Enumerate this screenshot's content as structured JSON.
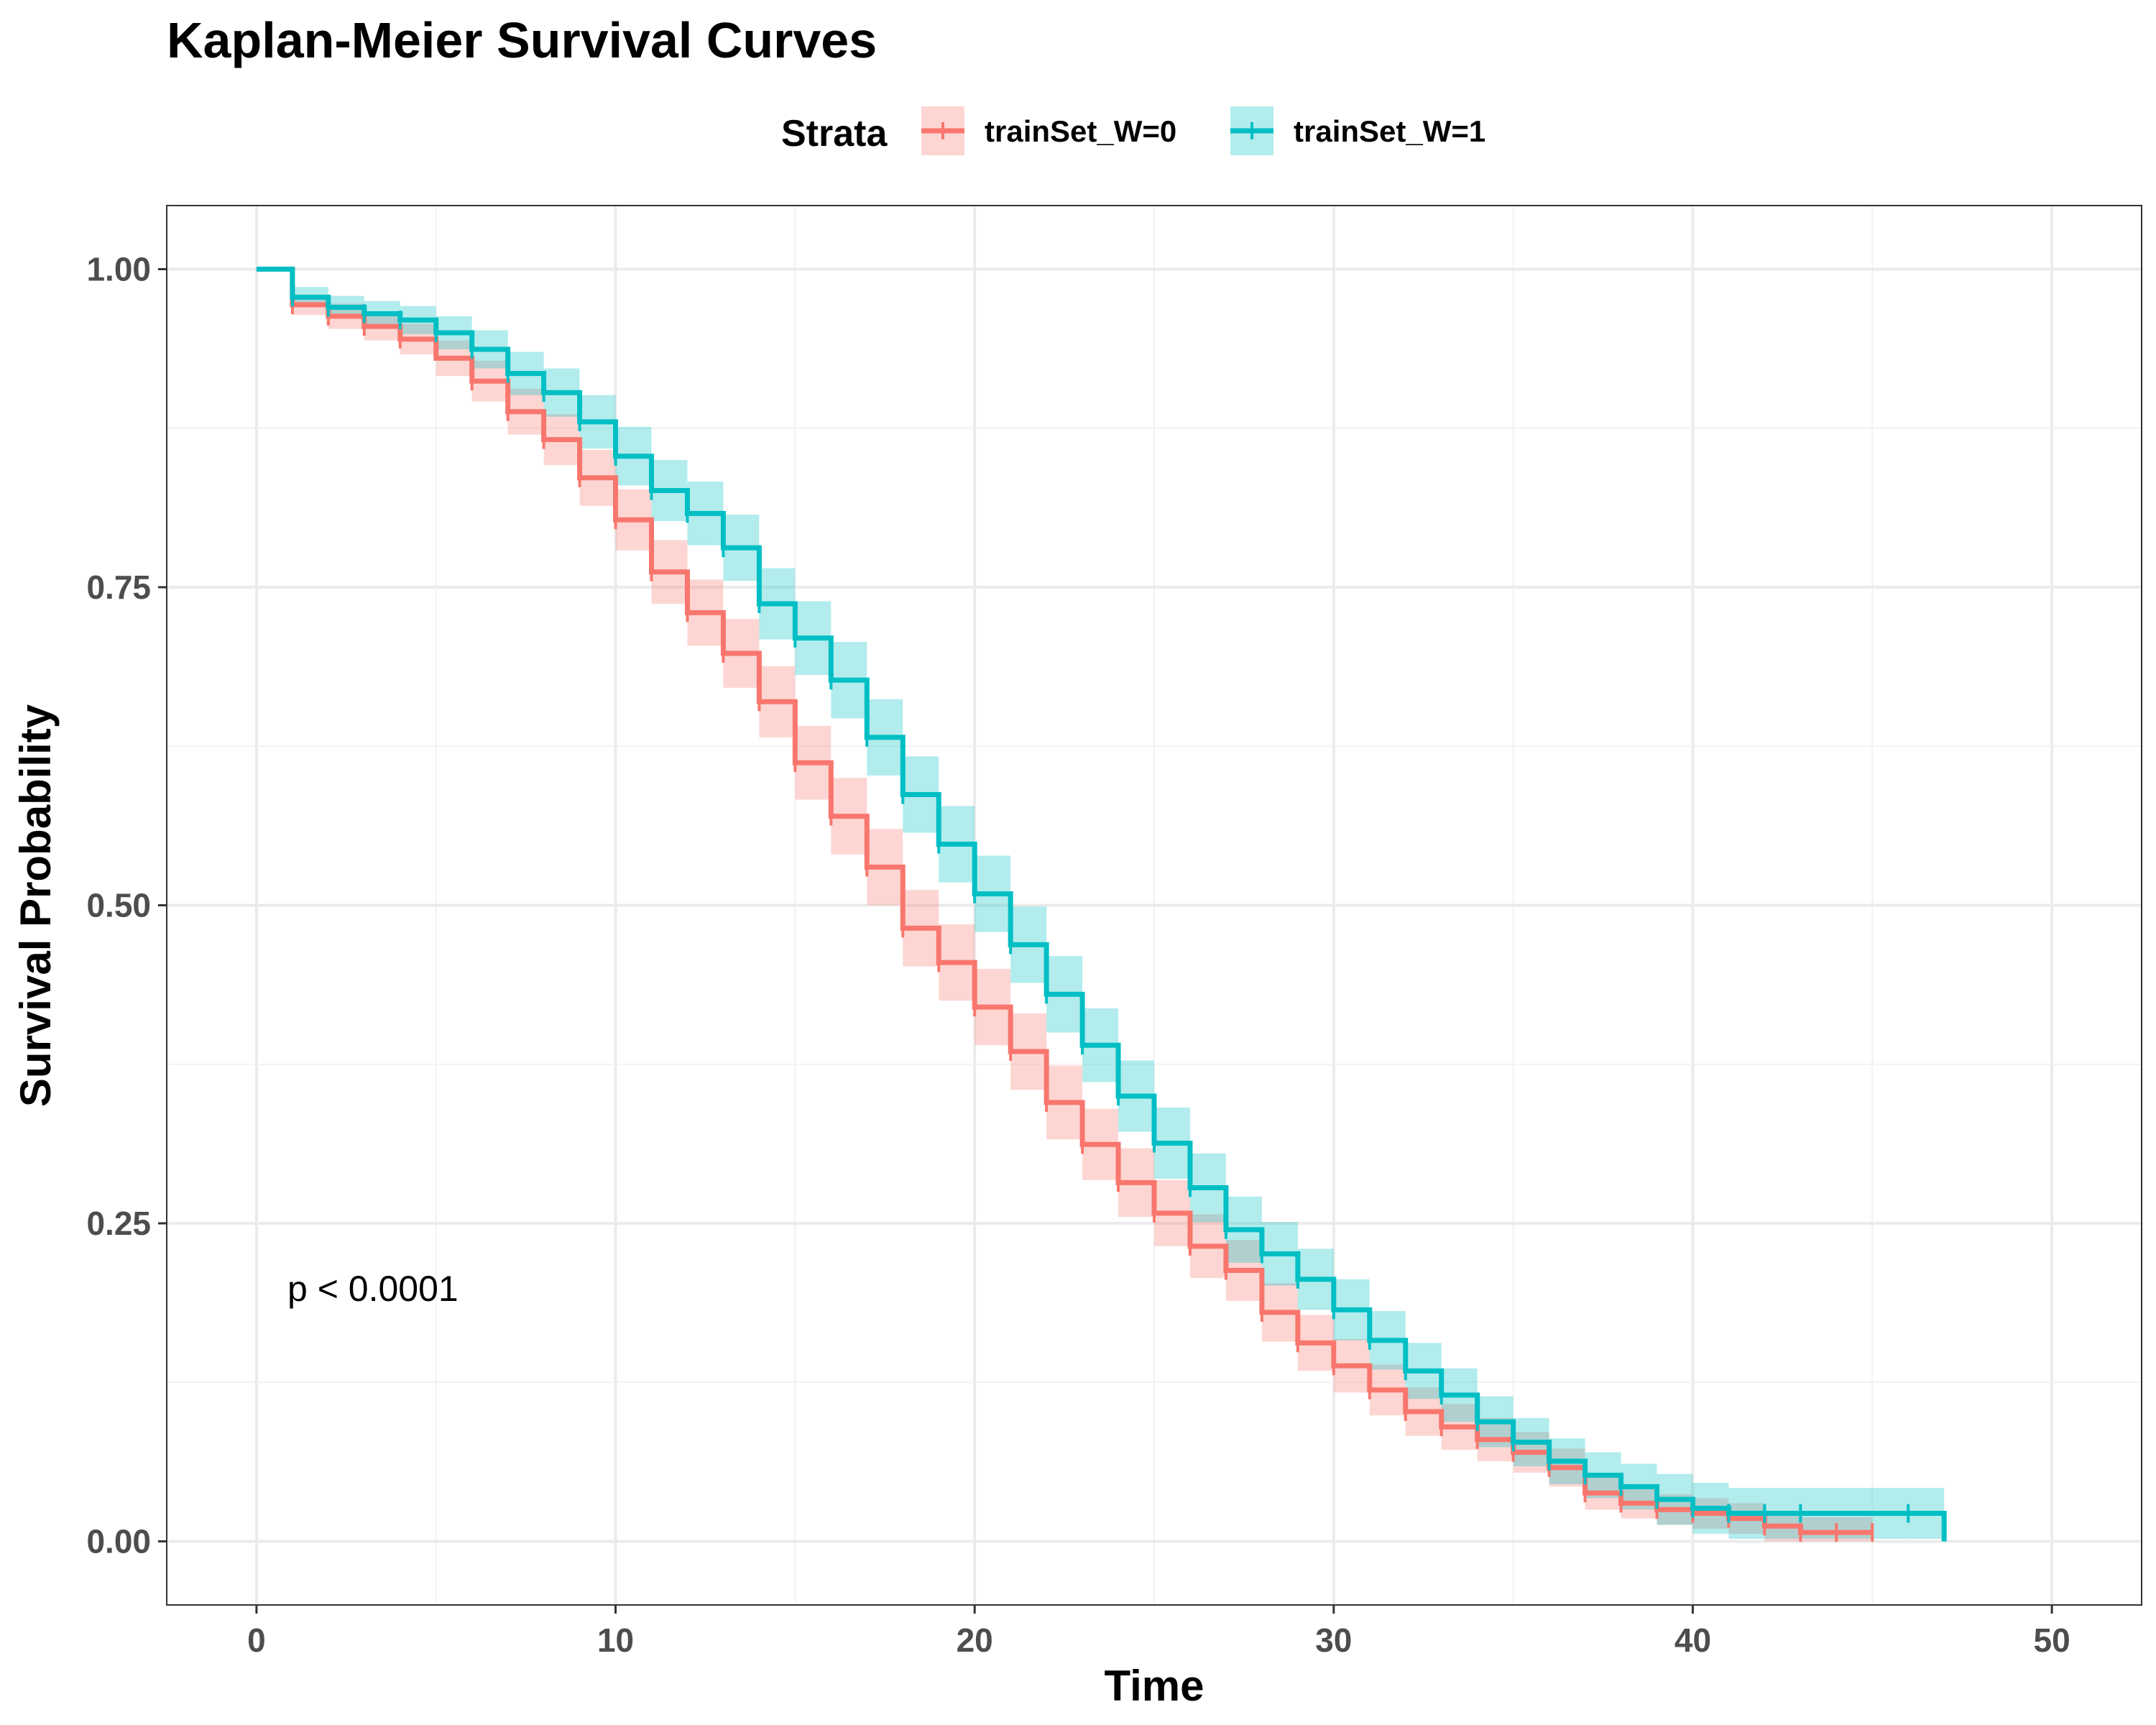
{
  "chart_data": {
    "type": "line",
    "subtype": "kaplan-meier step survival curves with confidence bands and censor ticks",
    "title": "Kaplan-Meier Survival Curves",
    "xlabel": "Time",
    "ylabel": "Survival Probability",
    "xlim": [
      -2.5,
      52.5
    ],
    "ylim": [
      -0.05,
      1.05
    ],
    "x_ticks": [
      0,
      10,
      20,
      30,
      40,
      50
    ],
    "x_tick_labels": [
      "0",
      "10",
      "20",
      "30",
      "40",
      "50"
    ],
    "y_ticks": [
      0,
      0.25,
      0.5,
      0.75,
      1.0
    ],
    "y_tick_labels": [
      "0.00",
      "0.25",
      "0.50",
      "0.75",
      "1.00"
    ],
    "grid": true,
    "legend": {
      "title": "Strata",
      "position": "top"
    },
    "annotation": "p < 0.0001",
    "series": [
      {
        "name": "trainSet_W=0",
        "color": "#F8766D",
        "x": [
          0,
          1,
          2,
          3,
          4,
          5,
          6,
          7,
          8,
          9,
          10,
          11,
          12,
          13,
          14,
          15,
          16,
          17,
          18,
          19,
          20,
          21,
          22,
          23,
          24,
          25,
          26,
          27,
          28,
          29,
          30,
          31,
          32,
          33,
          34,
          35,
          36,
          37,
          38,
          39,
          40,
          41,
          42,
          43,
          44,
          45
        ],
        "y": [
          1.0,
          0.972,
          0.963,
          0.955,
          0.945,
          0.93,
          0.912,
          0.888,
          0.866,
          0.836,
          0.803,
          0.762,
          0.73,
          0.698,
          0.66,
          0.612,
          0.57,
          0.53,
          0.482,
          0.455,
          0.42,
          0.385,
          0.345,
          0.312,
          0.282,
          0.258,
          0.232,
          0.213,
          0.18,
          0.156,
          0.138,
          0.119,
          0.102,
          0.09,
          0.08,
          0.07,
          0.058,
          0.038,
          0.03,
          0.025,
          0.022,
          0.018,
          0.012,
          0.007,
          0.007,
          0.007
        ],
        "ci_halfwidth": [
          0,
          0.008,
          0.01,
          0.011,
          0.012,
          0.014,
          0.016,
          0.018,
          0.02,
          0.022,
          0.024,
          0.025,
          0.026,
          0.027,
          0.028,
          0.029,
          0.03,
          0.03,
          0.03,
          0.03,
          0.03,
          0.03,
          0.029,
          0.028,
          0.027,
          0.026,
          0.025,
          0.024,
          0.023,
          0.022,
          0.021,
          0.02,
          0.019,
          0.018,
          0.017,
          0.016,
          0.015,
          0.013,
          0.012,
          0.012,
          0.012,
          0.012,
          0.012,
          0.012,
          0.012,
          0.012
        ],
        "end_x": 45,
        "censor_x": [
          1,
          2,
          3,
          4,
          6,
          7,
          8,
          9,
          10,
          11,
          12,
          13,
          14,
          15,
          16,
          17,
          18,
          19,
          20,
          21,
          22,
          23,
          24,
          25,
          26,
          27,
          28,
          29,
          30,
          31,
          32,
          33,
          34,
          35,
          36,
          37,
          38,
          39,
          40,
          41,
          42,
          43,
          44,
          45
        ]
      },
      {
        "name": "trainSet_W=1",
        "color": "#00BFC4",
        "x": [
          0,
          1,
          2,
          3,
          4,
          5,
          6,
          7,
          8,
          9,
          10,
          11,
          12,
          13,
          14,
          15,
          16,
          17,
          18,
          19,
          20,
          21,
          22,
          23,
          24,
          25,
          26,
          27,
          28,
          29,
          30,
          31,
          32,
          33,
          34,
          35,
          36,
          37,
          38,
          39,
          40,
          41,
          42,
          43,
          44,
          45,
          46
        ],
        "y": [
          1.0,
          0.978,
          0.97,
          0.965,
          0.96,
          0.95,
          0.937,
          0.918,
          0.903,
          0.88,
          0.853,
          0.826,
          0.808,
          0.781,
          0.737,
          0.71,
          0.677,
          0.632,
          0.587,
          0.548,
          0.509,
          0.469,
          0.43,
          0.39,
          0.35,
          0.313,
          0.278,
          0.245,
          0.226,
          0.206,
          0.182,
          0.158,
          0.134,
          0.115,
          0.094,
          0.078,
          0.063,
          0.052,
          0.043,
          0.033,
          0.026,
          0.022,
          0.022,
          0.022,
          0.022,
          0.022,
          0.022
        ],
        "ci_halfwidth": [
          0,
          0.008,
          0.009,
          0.01,
          0.011,
          0.013,
          0.015,
          0.017,
          0.019,
          0.021,
          0.023,
          0.024,
          0.025,
          0.026,
          0.028,
          0.029,
          0.03,
          0.03,
          0.03,
          0.03,
          0.03,
          0.03,
          0.03,
          0.029,
          0.028,
          0.028,
          0.027,
          0.026,
          0.025,
          0.024,
          0.024,
          0.023,
          0.022,
          0.021,
          0.02,
          0.019,
          0.018,
          0.018,
          0.018,
          0.02,
          0.02,
          0.02,
          0.02,
          0.02,
          0.02,
          0.02,
          0.02
        ],
        "end_x": 47,
        "end_y": 0.0,
        "censor_x": [
          1,
          2,
          3,
          4,
          5,
          6,
          7,
          8,
          9,
          10,
          11,
          12,
          13,
          14,
          15,
          16,
          17,
          18,
          19,
          20,
          21,
          22,
          23,
          24,
          25,
          26,
          27,
          28,
          29,
          30,
          31,
          32,
          33,
          34,
          35,
          36,
          37,
          38,
          39,
          40,
          41,
          42,
          43,
          46
        ]
      }
    ]
  }
}
